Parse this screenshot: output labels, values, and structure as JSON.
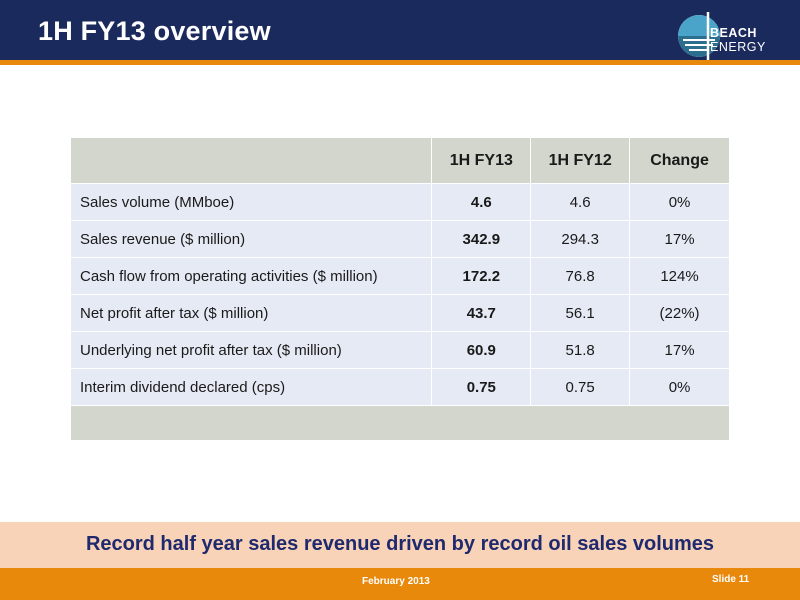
{
  "header": {
    "title": "1H FY13 overview",
    "logo_line1": "BEACH",
    "logo_line2": "ENERGY"
  },
  "table": {
    "columns": [
      "",
      "1H FY13",
      "1H FY12",
      "Change"
    ],
    "rows": [
      {
        "label": "Sales volume (MMboe)",
        "fy13": "4.6",
        "fy12": "4.6",
        "change": "0%"
      },
      {
        "label": "Sales revenue ($ million)",
        "fy13": "342.9",
        "fy12": "294.3",
        "change": "17%"
      },
      {
        "label": "Cash flow from operating activities ($ million)",
        "fy13": "172.2",
        "fy12": "76.8",
        "change": "124%"
      },
      {
        "label": "Net profit after tax ($ million)",
        "fy13": "43.7",
        "fy12": "56.1",
        "change": "(22%)"
      },
      {
        "label": "Underlying net profit after tax ($ million)",
        "fy13": "60.9",
        "fy12": "51.8",
        "change": "17%"
      },
      {
        "label": "Interim dividend declared (cps)",
        "fy13": "0.75",
        "fy12": "0.75",
        "change": "0%"
      }
    ]
  },
  "banner": {
    "text": "Record half year sales revenue driven by record oil sales volumes"
  },
  "footer": {
    "date": "February 2013",
    "slide": "Slide 11"
  },
  "colors": {
    "header_navy": "#1b2a5c",
    "accent_orange": "#e8890c",
    "banner_peach": "#f8d3b7",
    "table_header_gray": "#d2d6cc",
    "table_row_blue": "#e6eaf4"
  }
}
